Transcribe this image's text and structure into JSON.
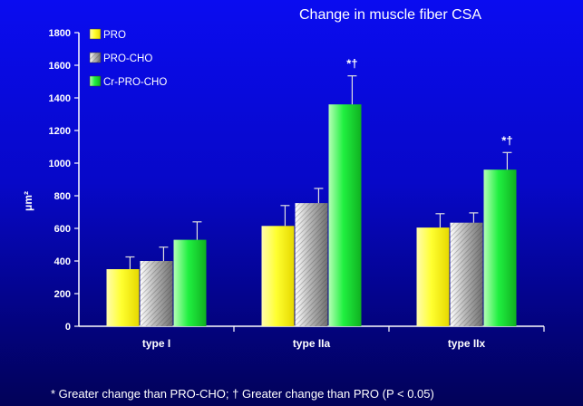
{
  "chart_data": {
    "type": "bar",
    "title": "Change in muscle fiber CSA",
    "ylabel": "μm²",
    "xlabel": "",
    "categories": [
      "type I",
      "type IIa",
      "type IIx"
    ],
    "ylim": [
      0,
      1800
    ],
    "yticks": [
      0,
      200,
      400,
      600,
      800,
      1000,
      1200,
      1400,
      1600,
      1800
    ],
    "legend_position": "top-left",
    "grid": false,
    "series": [
      {
        "name": "PRO",
        "values": [
          350,
          615,
          605
        ],
        "errors": [
          75,
          125,
          85
        ],
        "color": "#ffff40"
      },
      {
        "name": "PRO-CHO",
        "values": [
          400,
          755,
          635
        ],
        "errors": [
          85,
          90,
          60
        ],
        "color": "#c8c8c8"
      },
      {
        "name": "Cr-PRO-CHO",
        "values": [
          530,
          1360,
          960
        ],
        "errors": [
          110,
          175,
          105
        ],
        "color": "#20e840"
      }
    ],
    "annotations": [
      {
        "category": "type IIa",
        "series": "Cr-PRO-CHO",
        "text": "*†"
      },
      {
        "category": "type IIx",
        "series": "Cr-PRO-CHO",
        "text": "*†"
      }
    ],
    "footnote": "* Greater change than PRO-CHO; † Greater change than PRO (P < 0.05)"
  }
}
